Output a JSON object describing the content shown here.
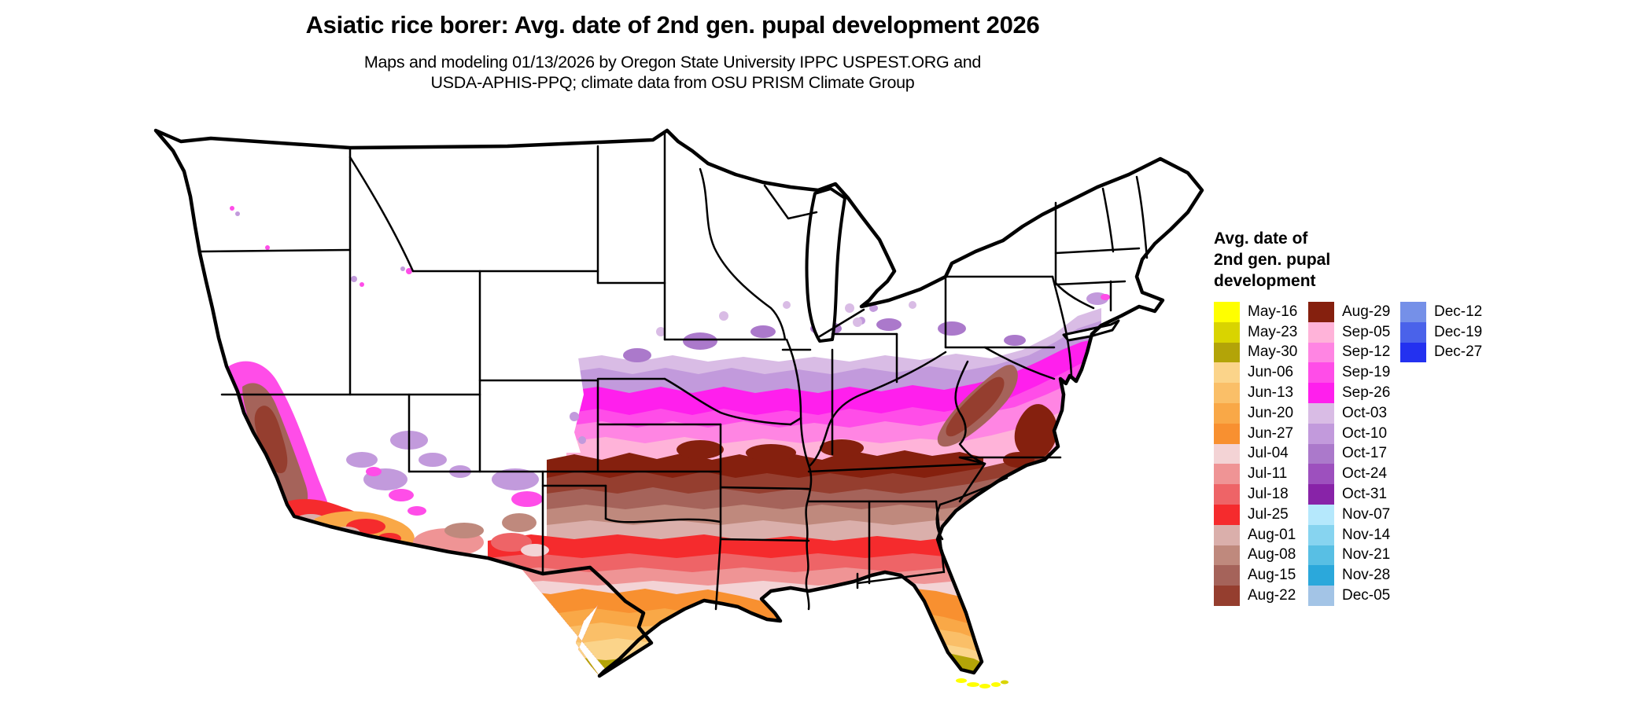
{
  "header": {
    "title": "Asiatic rice borer: Avg. date of 2nd gen. pupal development 2026",
    "subtitle_line1": "Maps and modeling 01/13/2026 by Oregon State University IPPC USPEST.ORG and",
    "subtitle_line2": "USDA-APHIS-PPQ; climate data from OSU PRISM Climate Group"
  },
  "legend": {
    "title_lines": [
      "Avg. date of",
      "2nd gen. pupal",
      "development"
    ],
    "columns": [
      [
        "May-16",
        "May-23",
        "May-30",
        "Jun-06",
        "Jun-13",
        "Jun-20",
        "Jun-27",
        "Jul-04",
        "Jul-11",
        "Jul-18",
        "Jul-25",
        "Aug-01",
        "Aug-08",
        "Aug-15",
        "Aug-22"
      ],
      [
        "Aug-29",
        "Sep-05",
        "Sep-12",
        "Sep-19",
        "Sep-26",
        "Oct-03",
        "Oct-10",
        "Oct-17",
        "Oct-24",
        "Oct-31",
        "Nov-07",
        "Nov-14",
        "Nov-21",
        "Nov-28",
        "Dec-05"
      ],
      [
        "Dec-12",
        "Dec-19",
        "Dec-27"
      ]
    ]
  },
  "colors": {
    "May-16": "#FFFF00",
    "May-23": "#D9D400",
    "May-30": "#B3A408",
    "Jun-06": "#FBD48A",
    "Jun-13": "#FABF68",
    "Jun-20": "#F9A847",
    "Jun-27": "#F89030",
    "Jul-04": "#F3D3D5",
    "Jul-11": "#EF9495",
    "Jul-18": "#EE6467",
    "Jul-25": "#F52B2D",
    "Aug-01": "#DAAFAB",
    "Aug-08": "#BF897D",
    "Aug-15": "#A5635A",
    "Aug-22": "#953E2F",
    "Aug-29": "#85200E",
    "Sep-05": "#FFB3D9",
    "Sep-12": "#FF85E3",
    "Sep-19": "#FF4DE8",
    "Sep-26": "#FF1FED",
    "Oct-03": "#D9BCE5",
    "Oct-10": "#C29ADC",
    "Oct-17": "#AB79CB",
    "Oct-24": "#9D50BE",
    "Oct-31": "#8823A8",
    "Nov-07": "#B5E8FC",
    "Nov-14": "#87D4F0",
    "Nov-21": "#58BFE4",
    "Nov-28": "#2BA8DB",
    "Dec-05": "#A3C4E6",
    "Dec-12": "#7590E8",
    "Dec-19": "#4A62EA",
    "Dec-27": "#2331F0",
    "map_background": "#FFFFFF",
    "border": "#000000"
  }
}
